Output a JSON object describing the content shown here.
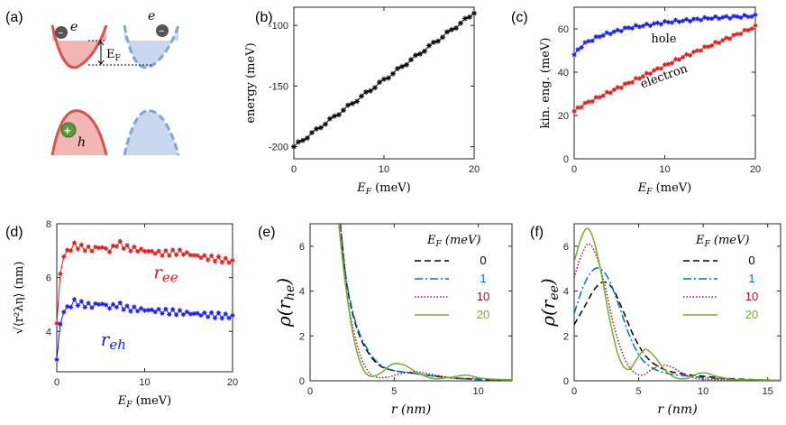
{
  "panels": {
    "a": {
      "label": "(a)",
      "electron_symbol": "e",
      "hole_symbol": "h",
      "fermi_label": "E",
      "fermi_sub": "F",
      "minus_sign": "−",
      "plus_sign": "+"
    },
    "b": {
      "label": "(b)"
    },
    "c": {
      "label": "(c)"
    },
    "d": {
      "label": "(d)"
    },
    "e": {
      "label": "(e)"
    },
    "f": {
      "label": "(f)"
    }
  },
  "colors": {
    "red": "#e31a1c",
    "blue": "#1a1aff",
    "hole_text": "#1f77d1",
    "electron_text": "#c8102e",
    "black": "#000000",
    "legend_blue": "#0072bd",
    "legend_red": "#a2142f",
    "legend_green": "#77ac30",
    "well_red": "#e07070",
    "well_blue": "#8fb0d8"
  },
  "chart_data": [
    {
      "id": "b",
      "type": "line",
      "title": "",
      "xlabel_var": "E",
      "xlabel_sub": "F",
      "xlabel_unit": "(meV)",
      "ylabel": "energy (meV)",
      "xlim": [
        0,
        20
      ],
      "ylim": [
        -210,
        -85
      ],
      "xticks": [
        0,
        10,
        20
      ],
      "yticks": [
        -200,
        -150,
        -100
      ],
      "series": [
        {
          "name": "energy",
          "x_start": 0,
          "x_end": 20,
          "y_start": -200,
          "y_end": -90,
          "points": 41,
          "color": "#000000"
        }
      ]
    },
    {
      "id": "c",
      "type": "line",
      "title": "",
      "xlabel_var": "E",
      "xlabel_sub": "F",
      "xlabel_unit": "(meV)",
      "ylabel": "kin. eng. (meV)",
      "xlim": [
        0,
        20
      ],
      "ylim": [
        0,
        70
      ],
      "xticks": [
        0,
        10,
        20
      ],
      "yticks": [
        0,
        20,
        40,
        60
      ],
      "series": [
        {
          "name": "hole",
          "x": [
            0,
            1,
            3,
            6,
            10,
            15,
            20
          ],
          "y": [
            48,
            53,
            57,
            60.5,
            63,
            65,
            66
          ],
          "color": "#1a1aff"
        },
        {
          "name": "electron",
          "x": [
            0,
            1,
            4,
            8,
            12,
            16,
            20
          ],
          "y": [
            22,
            25,
            31,
            39,
            47,
            54,
            61
          ],
          "color": "#e31a1c"
        }
      ],
      "annotations": [
        {
          "text": "hole",
          "x": 8.5,
          "y": 63
        },
        {
          "text": "electron",
          "x": 7.5,
          "y": 41
        }
      ]
    },
    {
      "id": "d",
      "type": "line",
      "title": "",
      "xlabel_var": "E",
      "xlabel_sub": "F",
      "xlabel_unit": "(meV)",
      "ylabel": "√⟨r²λη⟩ (nm)",
      "xlim": [
        0,
        20
      ],
      "ylim": [
        2.5,
        8
      ],
      "xticks": [
        0,
        10,
        20
      ],
      "yticks": [
        4,
        6,
        8
      ],
      "series": [
        {
          "name": "r_ee",
          "x": [
            0,
            0.5,
            1,
            2,
            3,
            4,
            5,
            6,
            7,
            8,
            10,
            12,
            14,
            16,
            18,
            20
          ],
          "y": [
            4.3,
            6.6,
            6.9,
            7.2,
            7.1,
            7.05,
            7.15,
            7.0,
            7.3,
            7.1,
            7.0,
            6.9,
            6.95,
            6.8,
            6.7,
            6.6
          ],
          "color": "#e31a1c"
        },
        {
          "name": "r_eh",
          "x": [
            0,
            0.5,
            1,
            2,
            3,
            4,
            5,
            6,
            7,
            8,
            10,
            12,
            14,
            16,
            18,
            20
          ],
          "y": [
            2.95,
            4.6,
            4.8,
            5.1,
            5.0,
            4.95,
            5.05,
            4.9,
            5.0,
            4.85,
            4.8,
            4.75,
            4.7,
            4.65,
            4.6,
            4.55
          ],
          "color": "#1a1aff"
        }
      ],
      "annotations": [
        {
          "text": "r",
          "sub": "ee",
          "x": 11,
          "y": 6.3
        },
        {
          "text": "r",
          "sub": "eh",
          "x": 5,
          "y": 3.8
        }
      ]
    },
    {
      "id": "e",
      "type": "line",
      "title": "",
      "xlabel": "r (nm)",
      "ylabel_main": "ρ(r",
      "ylabel_sub": "he",
      "ylabel_end": ")",
      "xlim": [
        0,
        12
      ],
      "ylim": [
        0,
        7
      ],
      "xticks": [
        0,
        5,
        10
      ],
      "yticks": [
        0,
        2,
        4,
        6
      ],
      "legend_title": "E",
      "legend_title_sub": "F",
      "legend_title_unit": "(meV)",
      "series": [
        {
          "name": "0",
          "style": "dashed",
          "color": "#000000",
          "x": [
            1.8,
            2.2,
            2.8,
            3.5,
            4.2,
            5,
            6,
            7.5,
            9,
            10.5,
            12
          ],
          "y": [
            7,
            4.2,
            2.3,
            1.2,
            0.65,
            0.45,
            0.35,
            0.2,
            0.1,
            0.05,
            0.02
          ]
        },
        {
          "name": "1",
          "style": "dashdot",
          "color": "#0072bd",
          "x": [
            1.8,
            2.2,
            2.8,
            3.5,
            4.2,
            5,
            6,
            7.5,
            9,
            10.5,
            12
          ],
          "y": [
            7,
            4.3,
            2.4,
            1.3,
            0.7,
            0.45,
            0.35,
            0.2,
            0.1,
            0.05,
            0.02
          ]
        },
        {
          "name": "10",
          "style": "dotted",
          "color": "#a2142f",
          "x": [
            1.8,
            2.2,
            2.8,
            3.3,
            3.8,
            4.5,
            5.3,
            6.3,
            7.5,
            8.7,
            10,
            11,
            12
          ],
          "y": [
            7,
            3.8,
            1.6,
            0.6,
            0.2,
            0.15,
            0.3,
            0.4,
            0.25,
            0.1,
            0.12,
            0.05,
            0.03
          ]
        },
        {
          "name": "20",
          "style": "solid",
          "color": "#77ac30",
          "x": [
            1.7,
            2.1,
            2.6,
            3.1,
            3.6,
            4.2,
            4.9,
            5.6,
            6.4,
            7.3,
            8.3,
            9.3,
            10.3,
            12
          ],
          "y": [
            7,
            4.3,
            1.9,
            0.6,
            0.2,
            0.35,
            0.75,
            0.7,
            0.35,
            0.1,
            0.15,
            0.25,
            0.1,
            0.05
          ]
        }
      ]
    },
    {
      "id": "f",
      "type": "line",
      "title": "",
      "xlabel": "r (nm)",
      "ylabel_main": "ρ(r",
      "ylabel_sub": "ee",
      "ylabel_end": ")",
      "xlim": [
        0,
        16
      ],
      "ylim": [
        0,
        7
      ],
      "xticks": [
        0,
        5,
        10,
        15
      ],
      "yticks": [
        0,
        2,
        4,
        6
      ],
      "legend_title": "E",
      "legend_title_sub": "F",
      "legend_title_unit": "(meV)",
      "series": [
        {
          "name": "0",
          "style": "dashed",
          "color": "#000000",
          "x": [
            0,
            0.8,
            1.6,
            2.3,
            3.0,
            3.8,
            4.7,
            5.7,
            7,
            8.5,
            10,
            12,
            14,
            16
          ],
          "y": [
            2.5,
            3.3,
            4.1,
            4.4,
            4.1,
            3.1,
            1.9,
            1.0,
            0.5,
            0.3,
            0.2,
            0.1,
            0.05,
            0.02
          ]
        },
        {
          "name": "1",
          "style": "dashdot",
          "color": "#0072bd",
          "x": [
            0,
            0.7,
            1.4,
            2.0,
            2.7,
            3.5,
            4.3,
            5.2,
            6.3,
            7.5,
            9,
            11,
            13,
            16
          ],
          "y": [
            3.0,
            4.2,
            4.9,
            5.0,
            4.5,
            3.3,
            2.0,
            1.0,
            0.5,
            0.3,
            0.2,
            0.1,
            0.05,
            0.02
          ]
        },
        {
          "name": "10",
          "style": "dotted",
          "color": "#a2142f",
          "x": [
            0,
            0.5,
            1.1,
            1.7,
            2.4,
            3.1,
            3.9,
            4.6,
            5.3,
            6.0,
            6.8,
            7.6,
            8.5,
            9.5,
            11,
            13,
            16
          ],
          "y": [
            4.6,
            5.5,
            6.1,
            5.6,
            4.2,
            2.4,
            1.0,
            0.4,
            0.25,
            0.5,
            0.7,
            0.6,
            0.3,
            0.1,
            0.05,
            0.05,
            0.02
          ]
        },
        {
          "name": "20",
          "style": "solid",
          "color": "#77ac30",
          "x": [
            0,
            0.5,
            1.0,
            1.5,
            2.1,
            2.8,
            3.5,
            4.2,
            4.9,
            5.5,
            6.2,
            7.0,
            7.8,
            8.7,
            9.5,
            10.2,
            11,
            12.5,
            14,
            16
          ],
          "y": [
            5.3,
            6.3,
            6.8,
            6.3,
            4.8,
            2.6,
            1.0,
            0.5,
            1.0,
            1.4,
            1.1,
            0.5,
            0.15,
            0.1,
            0.3,
            0.35,
            0.2,
            0.05,
            0.05,
            0.02
          ]
        }
      ]
    }
  ]
}
